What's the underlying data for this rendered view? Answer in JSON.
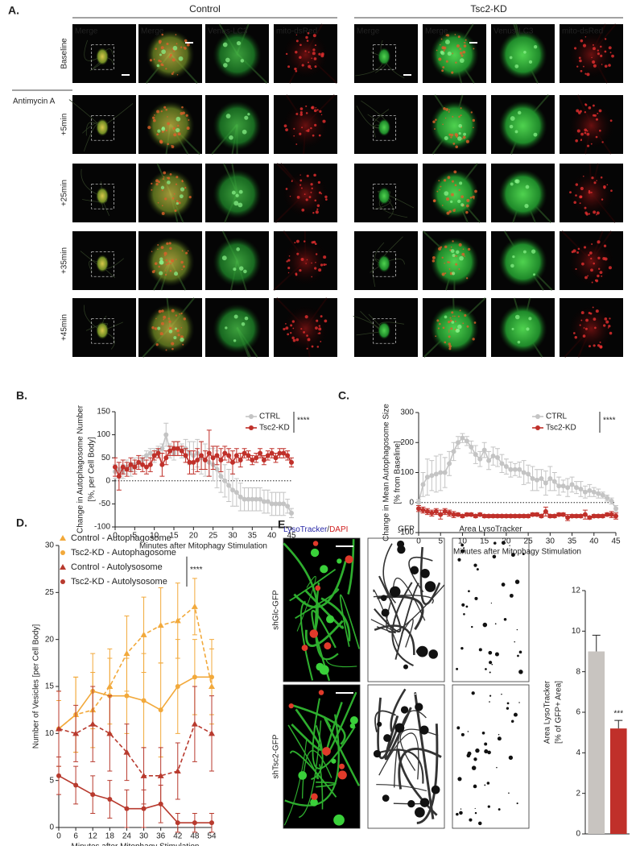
{
  "panel_a": {
    "label": "A.",
    "treatment": "Antimycin A",
    "groups": [
      {
        "title": "Control",
        "columns": [
          "Merge",
          "Merge",
          "Venus-LC3",
          "mito-dsRed"
        ]
      },
      {
        "title": "Tsc2-KD",
        "columns": [
          "Merge",
          "Merge",
          "Venus-LC3",
          "mito-dsRed"
        ]
      }
    ],
    "rows": [
      "Baseline",
      "+5min",
      "+25min",
      "+35min",
      "+45min"
    ]
  },
  "panel_e_images": {
    "label": "E.",
    "header_parts": [
      "LysoTracker",
      "/",
      "DAPI"
    ],
    "headers": [
      "GFP",
      "Area LysoTracker"
    ],
    "rows": [
      "shGlc-GFP",
      "shTsc2-GFP"
    ]
  },
  "chart_data": [
    {
      "type": "line",
      "panel_label": "B.",
      "ylabel": [
        "Change in Autophagosome Number",
        "[%, per Cell Body]"
      ],
      "xlabel": "Minutes after Mitophagy Stimulation",
      "xlim": [
        0,
        45
      ],
      "xticks": [
        0,
        5,
        10,
        15,
        20,
        25,
        30,
        35,
        40,
        45
      ],
      "ylim": [
        -100,
        150
      ],
      "yticks": [
        -100,
        -50,
        0,
        50,
        100,
        150
      ],
      "hline": 0,
      "significance": "****",
      "x": [
        0,
        1,
        2,
        3,
        4,
        5,
        6,
        7,
        8,
        9,
        10,
        11,
        12,
        13,
        14,
        15,
        16,
        17,
        18,
        19,
        20,
        21,
        22,
        23,
        24,
        25,
        26,
        27,
        28,
        29,
        30,
        31,
        32,
        33,
        34,
        35,
        36,
        37,
        38,
        39,
        40,
        41,
        42,
        43,
        44,
        45
      ],
      "series": [
        {
          "name": "CTRL",
          "color": "#c4c4c4",
          "marker": "circle",
          "values": [
            20,
            25,
            20,
            30,
            25,
            35,
            40,
            45,
            55,
            60,
            55,
            65,
            70,
            100,
            65,
            60,
            70,
            65,
            70,
            60,
            55,
            60,
            50,
            45,
            40,
            35,
            25,
            10,
            0,
            -10,
            -20,
            -25,
            -35,
            -40,
            -40,
            -40,
            -40,
            -40,
            -45,
            -45,
            -50,
            -50,
            -50,
            -50,
            -55,
            -70
          ],
          "errors": [
            15,
            15,
            15,
            15,
            15,
            15,
            10,
            10,
            10,
            10,
            15,
            10,
            10,
            25,
            15,
            15,
            15,
            15,
            20,
            25,
            30,
            30,
            35,
            35,
            30,
            35,
            40,
            35,
            35,
            35,
            35,
            30,
            30,
            25,
            25,
            25,
            25,
            25,
            25,
            25,
            25,
            25,
            25,
            25,
            15,
            10
          ]
        },
        {
          "name": "Tsc2-KD",
          "color": "#c0302a",
          "marker": "circle",
          "values": [
            30,
            10,
            30,
            25,
            35,
            30,
            40,
            35,
            30,
            35,
            55,
            60,
            35,
            50,
            65,
            70,
            70,
            65,
            55,
            40,
            40,
            45,
            55,
            45,
            60,
            50,
            55,
            45,
            60,
            55,
            40,
            55,
            45,
            60,
            55,
            45,
            50,
            60,
            45,
            55,
            60,
            50,
            60,
            60,
            55,
            40
          ],
          "errors": [
            20,
            30,
            15,
            15,
            15,
            15,
            15,
            15,
            15,
            15,
            10,
            10,
            25,
            15,
            10,
            15,
            15,
            10,
            15,
            25,
            25,
            25,
            30,
            20,
            50,
            25,
            20,
            25,
            15,
            15,
            25,
            15,
            15,
            10,
            10,
            10,
            10,
            10,
            10,
            10,
            10,
            10,
            10,
            10,
            10,
            10
          ]
        }
      ]
    },
    {
      "type": "line",
      "panel_label": "C.",
      "ylabel": [
        "Change in Mean Autophagosome Size",
        "[% from Baseline]"
      ],
      "xlabel": "Minutes after Mitophagy Stimulation",
      "xlim": [
        0,
        45
      ],
      "xticks": [
        0,
        5,
        10,
        15,
        20,
        25,
        30,
        35,
        40,
        45
      ],
      "ylim": [
        -100,
        300
      ],
      "yticks": [
        -100,
        0,
        100,
        200,
        300
      ],
      "hline": 0,
      "significance": "****",
      "x": [
        0,
        1,
        2,
        3,
        4,
        5,
        6,
        7,
        8,
        9,
        10,
        11,
        12,
        13,
        14,
        15,
        16,
        17,
        18,
        19,
        20,
        21,
        22,
        23,
        24,
        25,
        26,
        27,
        28,
        29,
        30,
        31,
        32,
        33,
        34,
        35,
        36,
        37,
        38,
        39,
        40,
        41,
        42,
        43,
        44,
        45
      ],
      "series": [
        {
          "name": "CTRL",
          "color": "#c4c4c4",
          "marker": "circle",
          "values": [
            0,
            60,
            85,
            90,
            95,
            100,
            100,
            130,
            170,
            200,
            215,
            205,
            185,
            160,
            145,
            175,
            140,
            155,
            150,
            130,
            120,
            110,
            110,
            110,
            100,
            95,
            80,
            75,
            80,
            65,
            80,
            70,
            55,
            55,
            50,
            60,
            50,
            45,
            35,
            40,
            35,
            30,
            25,
            15,
            5,
            -20
          ],
          "errors": [
            10,
            40,
            60,
            50,
            60,
            60,
            50,
            40,
            30,
            20,
            15,
            15,
            20,
            30,
            25,
            25,
            30,
            30,
            30,
            30,
            25,
            25,
            20,
            25,
            40,
            30,
            40,
            35,
            30,
            40,
            40,
            30,
            30,
            20,
            30,
            25,
            20,
            25,
            20,
            20,
            15,
            15,
            10,
            10,
            10,
            10
          ]
        },
        {
          "name": "Tsc2-KD",
          "color": "#c0302a",
          "marker": "circle",
          "values": [
            -20,
            -25,
            -30,
            -35,
            -30,
            -40,
            -30,
            -35,
            -40,
            -40,
            -45,
            -40,
            -40,
            -45,
            -40,
            -45,
            -45,
            -45,
            -45,
            -45,
            -45,
            -45,
            -45,
            -45,
            -45,
            -45,
            -40,
            -40,
            -45,
            -30,
            -45,
            -45,
            -40,
            -40,
            -50,
            -45,
            -45,
            -45,
            -40,
            -50,
            -45,
            -45,
            -45,
            -40,
            -40,
            -45
          ],
          "errors": [
            10,
            10,
            10,
            10,
            10,
            15,
            10,
            10,
            10,
            5,
            5,
            5,
            5,
            5,
            5,
            5,
            5,
            5,
            5,
            5,
            5,
            5,
            5,
            5,
            5,
            5,
            5,
            5,
            5,
            15,
            5,
            5,
            5,
            5,
            10,
            5,
            5,
            5,
            15,
            5,
            5,
            5,
            5,
            5,
            10,
            10
          ]
        }
      ]
    },
    {
      "type": "line",
      "panel_label": "D.",
      "ylabel": [
        "Number of Vesicles [per Cell Body]"
      ],
      "xlabel": "Minutes after Mitophagy Stimulation",
      "xlim": [
        0,
        54
      ],
      "xticks": [
        0,
        6,
        12,
        18,
        24,
        30,
        36,
        42,
        48,
        54
      ],
      "ylim": [
        0,
        30
      ],
      "yticks": [
        0,
        5,
        10,
        15,
        20,
        25,
        30
      ],
      "significance": "****",
      "x": [
        0,
        6,
        12,
        18,
        24,
        30,
        36,
        42,
        48,
        54
      ],
      "series": [
        {
          "name": "Control - Autophagosome",
          "color": "#f2a93b",
          "marker": "triangle",
          "dashed": true,
          "values": [
            10.5,
            12,
            12.5,
            15,
            18.5,
            20.5,
            21.5,
            22,
            23.5,
            15
          ],
          "errors": [
            3,
            4,
            4,
            4,
            4,
            4,
            4,
            4,
            3,
            4
          ]
        },
        {
          "name": "Tsc2-KD - Autophagosome",
          "color": "#f2a93b",
          "marker": "circle",
          "values": [
            10.5,
            12,
            14.5,
            14,
            14,
            13.5,
            12.5,
            15,
            16,
            16
          ],
          "errors": [
            4,
            4,
            4,
            4,
            4,
            5,
            5,
            5,
            4,
            4
          ]
        },
        {
          "name": "Control - Autolysosome",
          "color": "#b83a2e",
          "marker": "triangle",
          "dashed": true,
          "values": [
            10.5,
            10,
            11,
            10,
            8,
            5.5,
            5.5,
            6,
            11,
            10
          ],
          "errors": [
            4,
            3,
            4,
            4,
            3,
            3,
            3,
            3,
            4,
            4
          ]
        },
        {
          "name": "Tsc2-KD - Autolysosome",
          "color": "#b83a2e",
          "marker": "circle",
          "values": [
            5.5,
            4.5,
            3.5,
            3,
            2,
            2,
            2.5,
            0.5,
            0.5,
            0.5
          ],
          "errors": [
            2,
            2,
            2,
            2,
            2,
            2,
            2,
            1,
            1,
            1
          ]
        }
      ]
    },
    {
      "type": "bar",
      "ylabel": [
        "Area LysoTracker",
        "[% of GFP+ Area]"
      ],
      "ylim": [
        0,
        12
      ],
      "yticks": [
        0,
        2,
        4,
        6,
        8,
        10,
        12
      ],
      "categories": [
        null,
        null
      ],
      "values": [
        9,
        5.2
      ],
      "errors": [
        0.8,
        0.4
      ],
      "colors": [
        "#c8c4c0",
        "#c0302a"
      ],
      "annotation": "***"
    }
  ]
}
